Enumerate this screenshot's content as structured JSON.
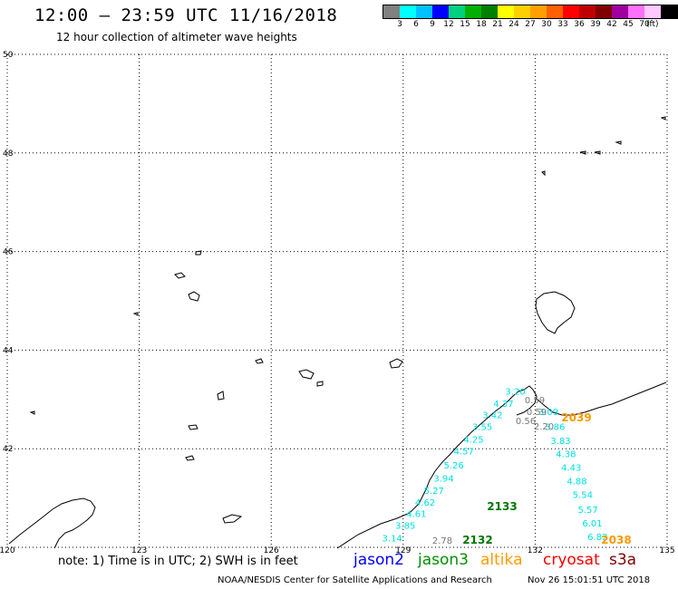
{
  "title": "12:00 – 23:59 UTC 11/16/2018",
  "subtitle": "12 hour collection of altimeter wave heights",
  "colorbar": {
    "colors": [
      "#808080",
      "#00ffff",
      "#00c0ff",
      "#0000ff",
      "#00d080",
      "#00b000",
      "#008000",
      "#ffff00",
      "#ffd000",
      "#ffa000",
      "#ff6000",
      "#ff0000",
      "#c00000",
      "#800000",
      "#a000a0",
      "#ff70ff",
      "#ffc8ff",
      "#000000"
    ],
    "labels": [
      "3",
      "6",
      "9",
      "12",
      "15",
      "18",
      "21",
      "24",
      "27",
      "30",
      "33",
      "36",
      "39",
      "42",
      "45",
      "70"
    ],
    "unit": "(ft)"
  },
  "axes": {
    "lon_labels": [
      "120",
      "123",
      "126",
      "129",
      "132",
      "135"
    ],
    "lat_labels": [
      "50",
      "48",
      "46",
      "44",
      "42",
      "40"
    ]
  },
  "tracks": [
    {
      "name": "left",
      "color": "#00e0e0",
      "values": [
        "3.14",
        "3.85",
        "4.61",
        "4.62",
        "5.27",
        "3.94",
        "5.26",
        "4.57",
        "4.25",
        "3.55",
        "3.42",
        "4.37",
        "3.20"
      ],
      "points": [
        [
          128.75,
          40.12
        ],
        [
          129.05,
          40.38
        ],
        [
          129.3,
          40.62
        ],
        [
          129.5,
          40.85
        ],
        [
          129.7,
          41.08
        ],
        [
          129.92,
          41.33
        ],
        [
          130.15,
          41.6
        ],
        [
          130.38,
          41.88
        ],
        [
          130.6,
          42.12
        ],
        [
          130.8,
          42.38
        ],
        [
          131.03,
          42.62
        ],
        [
          131.28,
          42.85
        ],
        [
          131.55,
          43.1
        ]
      ]
    },
    {
      "name": "right",
      "color": "#00e0e0",
      "values": [
        "3.09",
        "3.86",
        "3.83",
        "4.38",
        "4.43",
        "4.88",
        "5.54",
        "5.57",
        "6.01",
        "6.82"
      ],
      "points": [
        [
          132.3,
          42.68
        ],
        [
          132.45,
          42.38
        ],
        [
          132.58,
          42.1
        ],
        [
          132.7,
          41.83
        ],
        [
          132.82,
          41.55
        ],
        [
          132.95,
          41.28
        ],
        [
          133.08,
          41.0
        ],
        [
          133.2,
          40.7
        ],
        [
          133.3,
          40.42
        ],
        [
          133.42,
          40.15
        ]
      ]
    }
  ],
  "gray_labels": [
    "0.59",
    "0.59",
    "0.56",
    "2.20",
    "2.78"
  ],
  "pass_labels": [
    {
      "text": "2039",
      "color": "#ff9900"
    },
    {
      "text": "2133",
      "color": "#007700"
    },
    {
      "text": "2132",
      "color": "#007700"
    },
    {
      "text": "2038",
      "color": "#ff9900"
    }
  ],
  "footnote": "note: 1) Time is in UTC; 2) SWH is in feet",
  "legend": [
    {
      "label": "jason2",
      "color": "#0000ff"
    },
    {
      "label": "jason3",
      "color": "#009000"
    },
    {
      "label": "altika",
      "color": "#ff9900"
    },
    {
      "label": "cryosat",
      "color": "#ff0000"
    },
    {
      "label": "s3a",
      "color": "#800000"
    }
  ],
  "credit": "NOAA/NESDIS Center for Satellite Applications and Research",
  "credit_time": "Nov 26 15:01:51 UTC 2018"
}
